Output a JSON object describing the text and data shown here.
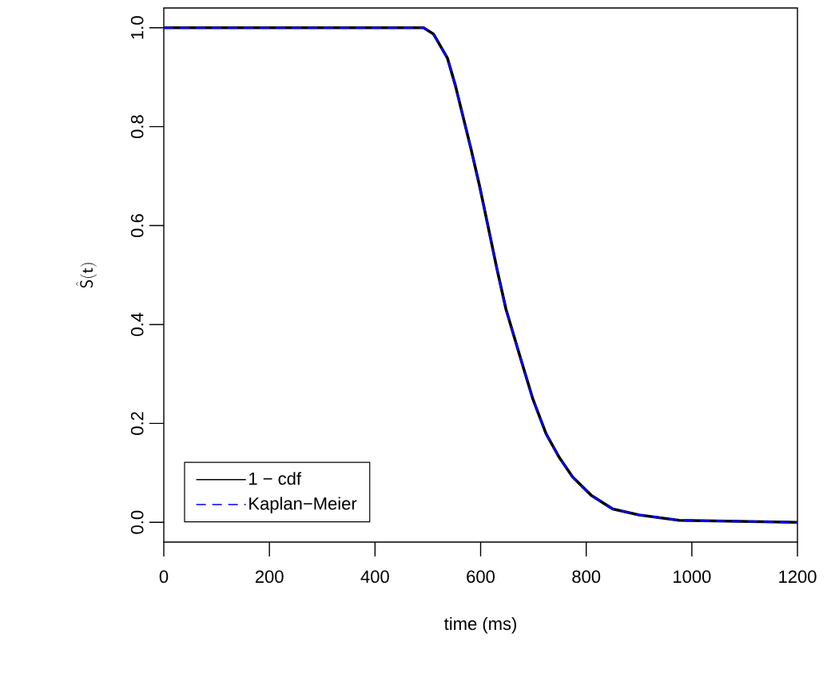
{
  "chart_data": {
    "type": "line",
    "xlabel": "time (ms)",
    "ylabel": "\\hat{\\mathsf{S}}(\\mathsf{t})",
    "xlim": [
      0,
      1200
    ],
    "ylim": [
      -0.04,
      1.04
    ],
    "xticks": [
      0,
      200,
      400,
      600,
      800,
      1000,
      1200
    ],
    "yticks": [
      {
        "value": 0,
        "label": "0.0"
      },
      {
        "value": 0.2,
        "label": "0.2"
      },
      {
        "value": 0.4,
        "label": "0.4"
      },
      {
        "value": 0.6,
        "label": "0.6"
      },
      {
        "value": 0.8,
        "label": "0.8"
      },
      {
        "value": 1,
        "label": "1.0"
      }
    ],
    "grid": false,
    "legend": "bottom left",
    "series": [
      {
        "name": "1 − cdf",
        "color": "#000000",
        "line_style": "solid",
        "x": [
          0,
          492,
          511,
          537,
          552,
          567,
          582,
          598,
          613,
          631,
          648,
          673,
          699,
          724,
          749,
          774,
          809,
          850,
          900,
          976,
          1200
        ],
        "values": [
          1,
          1,
          0.987,
          0.939,
          0.884,
          0.819,
          0.754,
          0.68,
          0.604,
          0.512,
          0.431,
          0.341,
          0.249,
          0.179,
          0.131,
          0.092,
          0.055,
          0.027,
          0.015,
          0.004,
          0
        ]
      },
      {
        "name": "Kaplan−Meier",
        "color": "#0000ff",
        "line_style": "dashed",
        "x": [
          0,
          492,
          511,
          537,
          552,
          567,
          582,
          598,
          613,
          631,
          648,
          673,
          699,
          724,
          749,
          774,
          809,
          850,
          900,
          976,
          1200
        ],
        "values": [
          1,
          1,
          0.987,
          0.939,
          0.884,
          0.819,
          0.754,
          0.68,
          0.604,
          0.512,
          0.431,
          0.341,
          0.249,
          0.179,
          0.131,
          0.092,
          0.055,
          0.027,
          0.015,
          0.004,
          0
        ]
      }
    ]
  }
}
